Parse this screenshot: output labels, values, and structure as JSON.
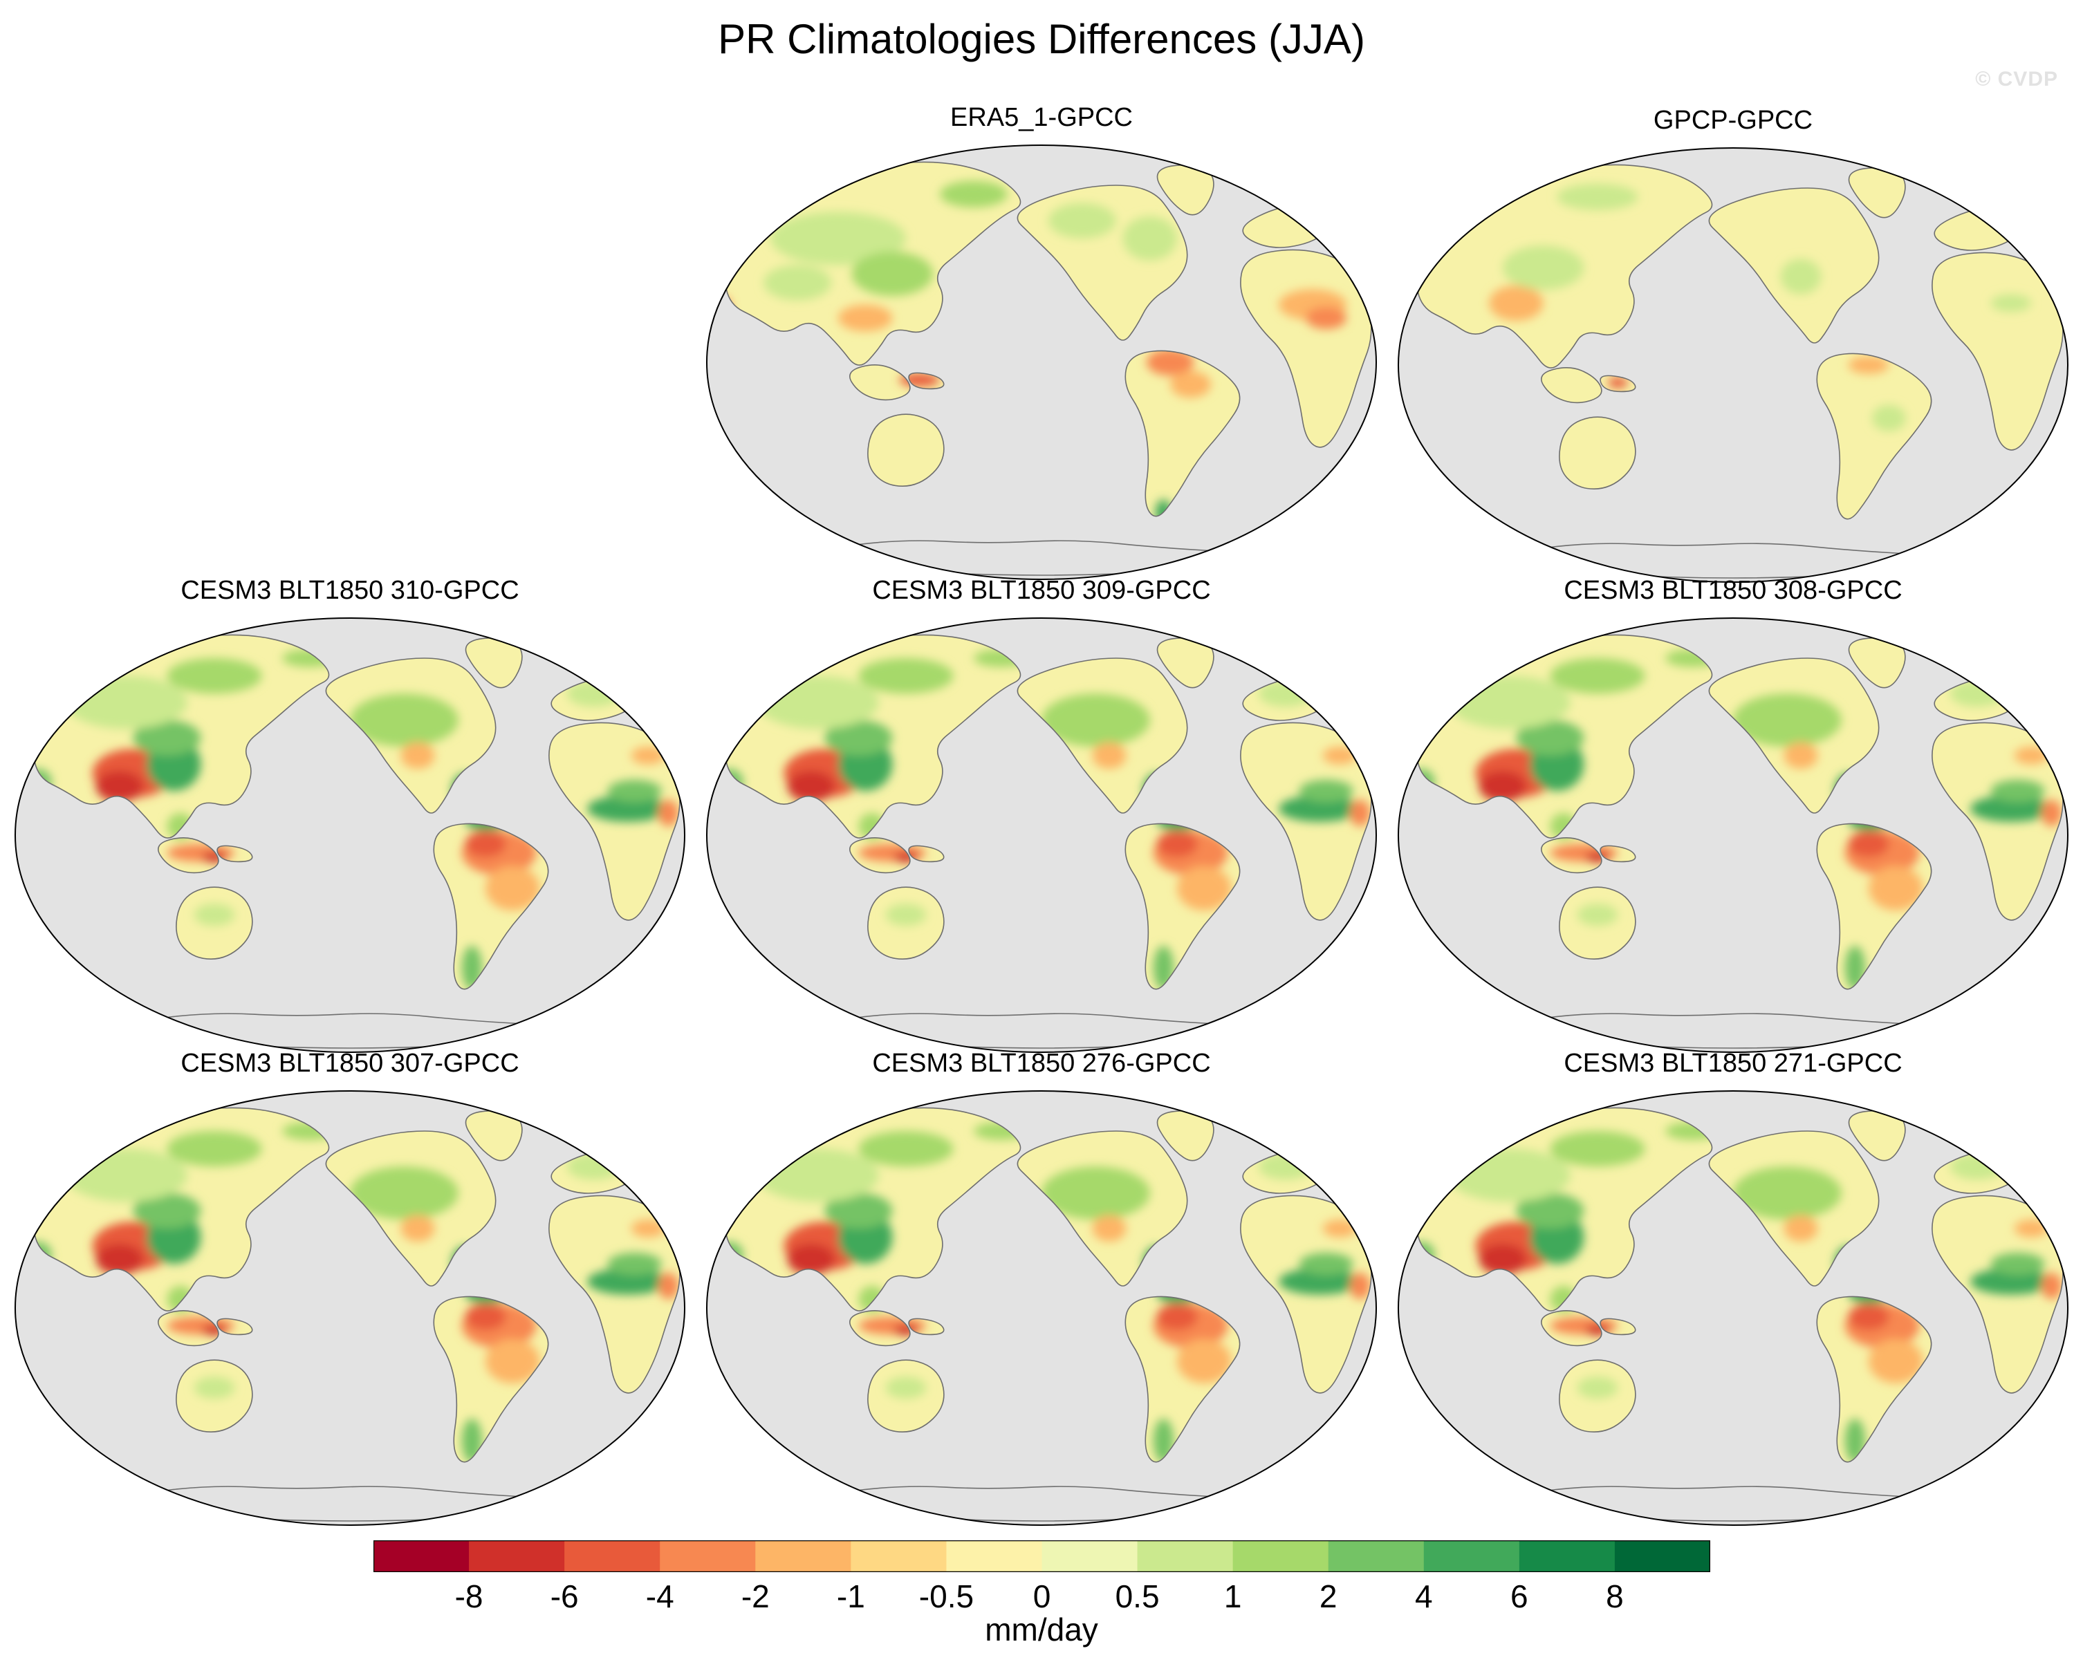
{
  "title": "PR Climatologies Differences (JJA)",
  "watermark": "© CVDP",
  "colors": {
    "ocean": "#e3e3e3",
    "land_base": "#f7f2a8",
    "coast": "#6e6e6e",
    "palette": [
      "#a50026",
      "#d0302a",
      "#e85a3a",
      "#f78851",
      "#fdb566",
      "#fed883",
      "#fdf2a9",
      "#eef6b3",
      "#cbe98e",
      "#a6d96a",
      "#74c365",
      "#41a95a",
      "#168a48",
      "#006837"
    ]
  },
  "panels": [
    {
      "id": "era5",
      "title": "ERA5_1-GPCC",
      "pattern": "obs1"
    },
    {
      "id": "gpcp",
      "title": "GPCP-GPCC",
      "pattern": "obs2"
    },
    {
      "id": "m310",
      "title": "CESM3 BLT1850 310-GPCC",
      "pattern": "model"
    },
    {
      "id": "m309",
      "title": "CESM3 BLT1850 309-GPCC",
      "pattern": "model"
    },
    {
      "id": "m308",
      "title": "CESM3 BLT1850 308-GPCC",
      "pattern": "model"
    },
    {
      "id": "m307",
      "title": "CESM3 BLT1850 307-GPCC",
      "pattern": "model"
    },
    {
      "id": "m276",
      "title": "CESM3 BLT1850 276-GPCC",
      "pattern": "model"
    },
    {
      "id": "m271",
      "title": "CESM3 BLT1850 271-GPCC",
      "pattern": "model"
    }
  ],
  "chart_data": {
    "type": "heatmap",
    "title": "PR Climatologies Differences (JJA)",
    "units": "mm/day",
    "colorbar_levels": [
      "-8",
      "-6",
      "-4",
      "-2",
      "-1",
      "-0.5",
      "0",
      "0.5",
      "1",
      "2",
      "4",
      "6",
      "8"
    ],
    "colorbar_bins": 14,
    "projection": "Robinson-like, Pacific-centered",
    "reference": "GPCC"
  }
}
